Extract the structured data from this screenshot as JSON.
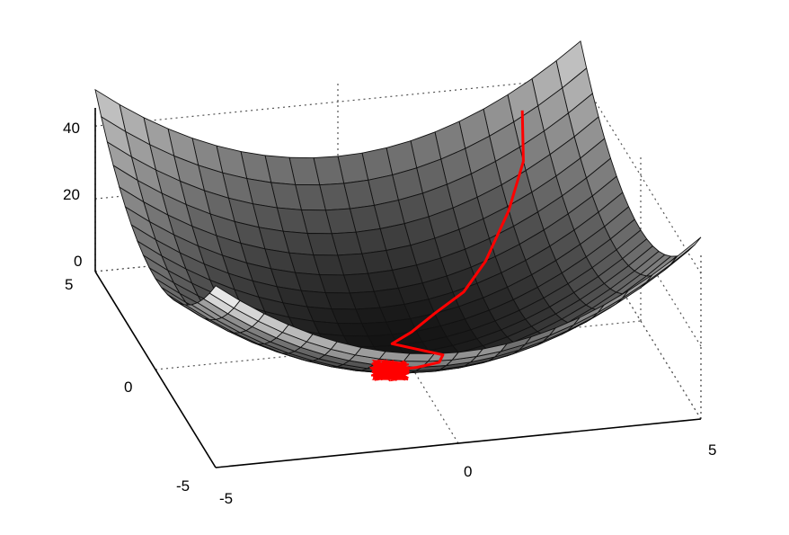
{
  "chart_data": {
    "type": "surface3d",
    "title": "",
    "xlabel": "",
    "ylabel": "",
    "zlabel": "",
    "xlim": [
      -5,
      5
    ],
    "ylim": [
      -5,
      5
    ],
    "zlim": [
      0,
      45
    ],
    "x_ticks": [
      "-5",
      "0",
      "5"
    ],
    "y_ticks": [
      "-5",
      "0",
      "5"
    ],
    "z_ticks": [
      "0",
      "20",
      "40"
    ],
    "grid": true,
    "surface": {
      "function": "x^2 + y^2",
      "grid_points": 21,
      "colormap": "gray"
    },
    "series": [
      {
        "type": "line3d",
        "color": "#ff0000",
        "path": [
          [
            3.7,
            4.6
          ],
          [
            3.5,
            3.7
          ],
          [
            3.0,
            2.9
          ],
          [
            2.3,
            2.0
          ],
          [
            1.7,
            1.4
          ],
          [
            1.0,
            1.0
          ],
          [
            0.4,
            0.5
          ],
          [
            -0.1,
            0.1
          ],
          [
            0.3,
            -0.3
          ],
          [
            0.7,
            -0.9
          ],
          [
            0.5,
            -1.4
          ],
          [
            0.0,
            -1.6
          ]
        ],
        "cluster_center": [
          -0.6,
          -1.8
        ]
      }
    ],
    "colors": {
      "trajectory": "#ff0000",
      "axis": "#000000",
      "grid": "#555555"
    }
  }
}
